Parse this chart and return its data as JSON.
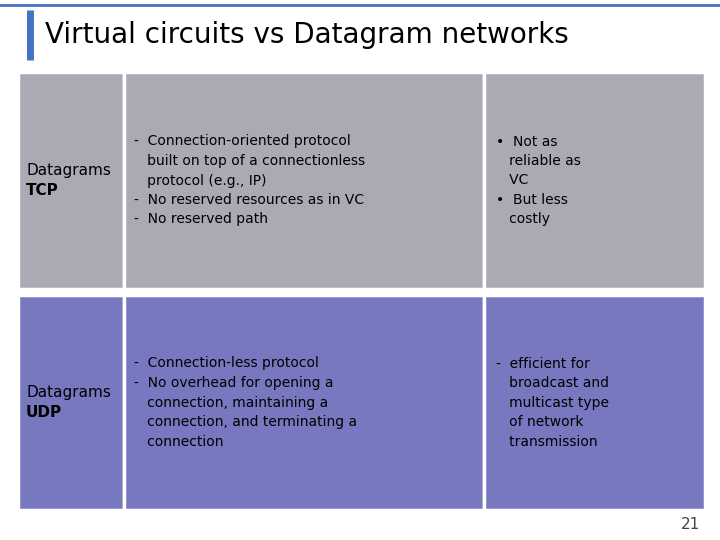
{
  "title": "Virtual circuits vs Datagram networks",
  "title_fontsize": 20,
  "title_color": "#000000",
  "background_color": "#ffffff",
  "accent_line_color": "#4472c4",
  "page_number": "21",
  "row1": {
    "col1_line1": "Datagrams",
    "col1_line2": "TCP",
    "col2_text": "-  Connection-oriented protocol\n   built on top of a connectionless\n   protocol (e.g., IP)\n-  No reserved resources as in VC\n-  No reserved path",
    "col3_text": "•  Not as\n   reliable as\n   VC\n•  But less\n   costly",
    "bg_color": "#aaaab4"
  },
  "row2": {
    "col1_line1": "Datagrams",
    "col1_line2": "UDP",
    "col2_text": "-  Connection-less protocol\n-  No overhead for opening a\n   connection, maintaining a\n   connection, and terminating a\n   connection",
    "col3_text": "-  efficient for\n   broadcast and\n   multicast type\n   of network\n   transmission",
    "bg_color": "#7878c0"
  },
  "cell_text_fontsize": 10,
  "col1_fontsize": 11,
  "page_num_fontsize": 11
}
